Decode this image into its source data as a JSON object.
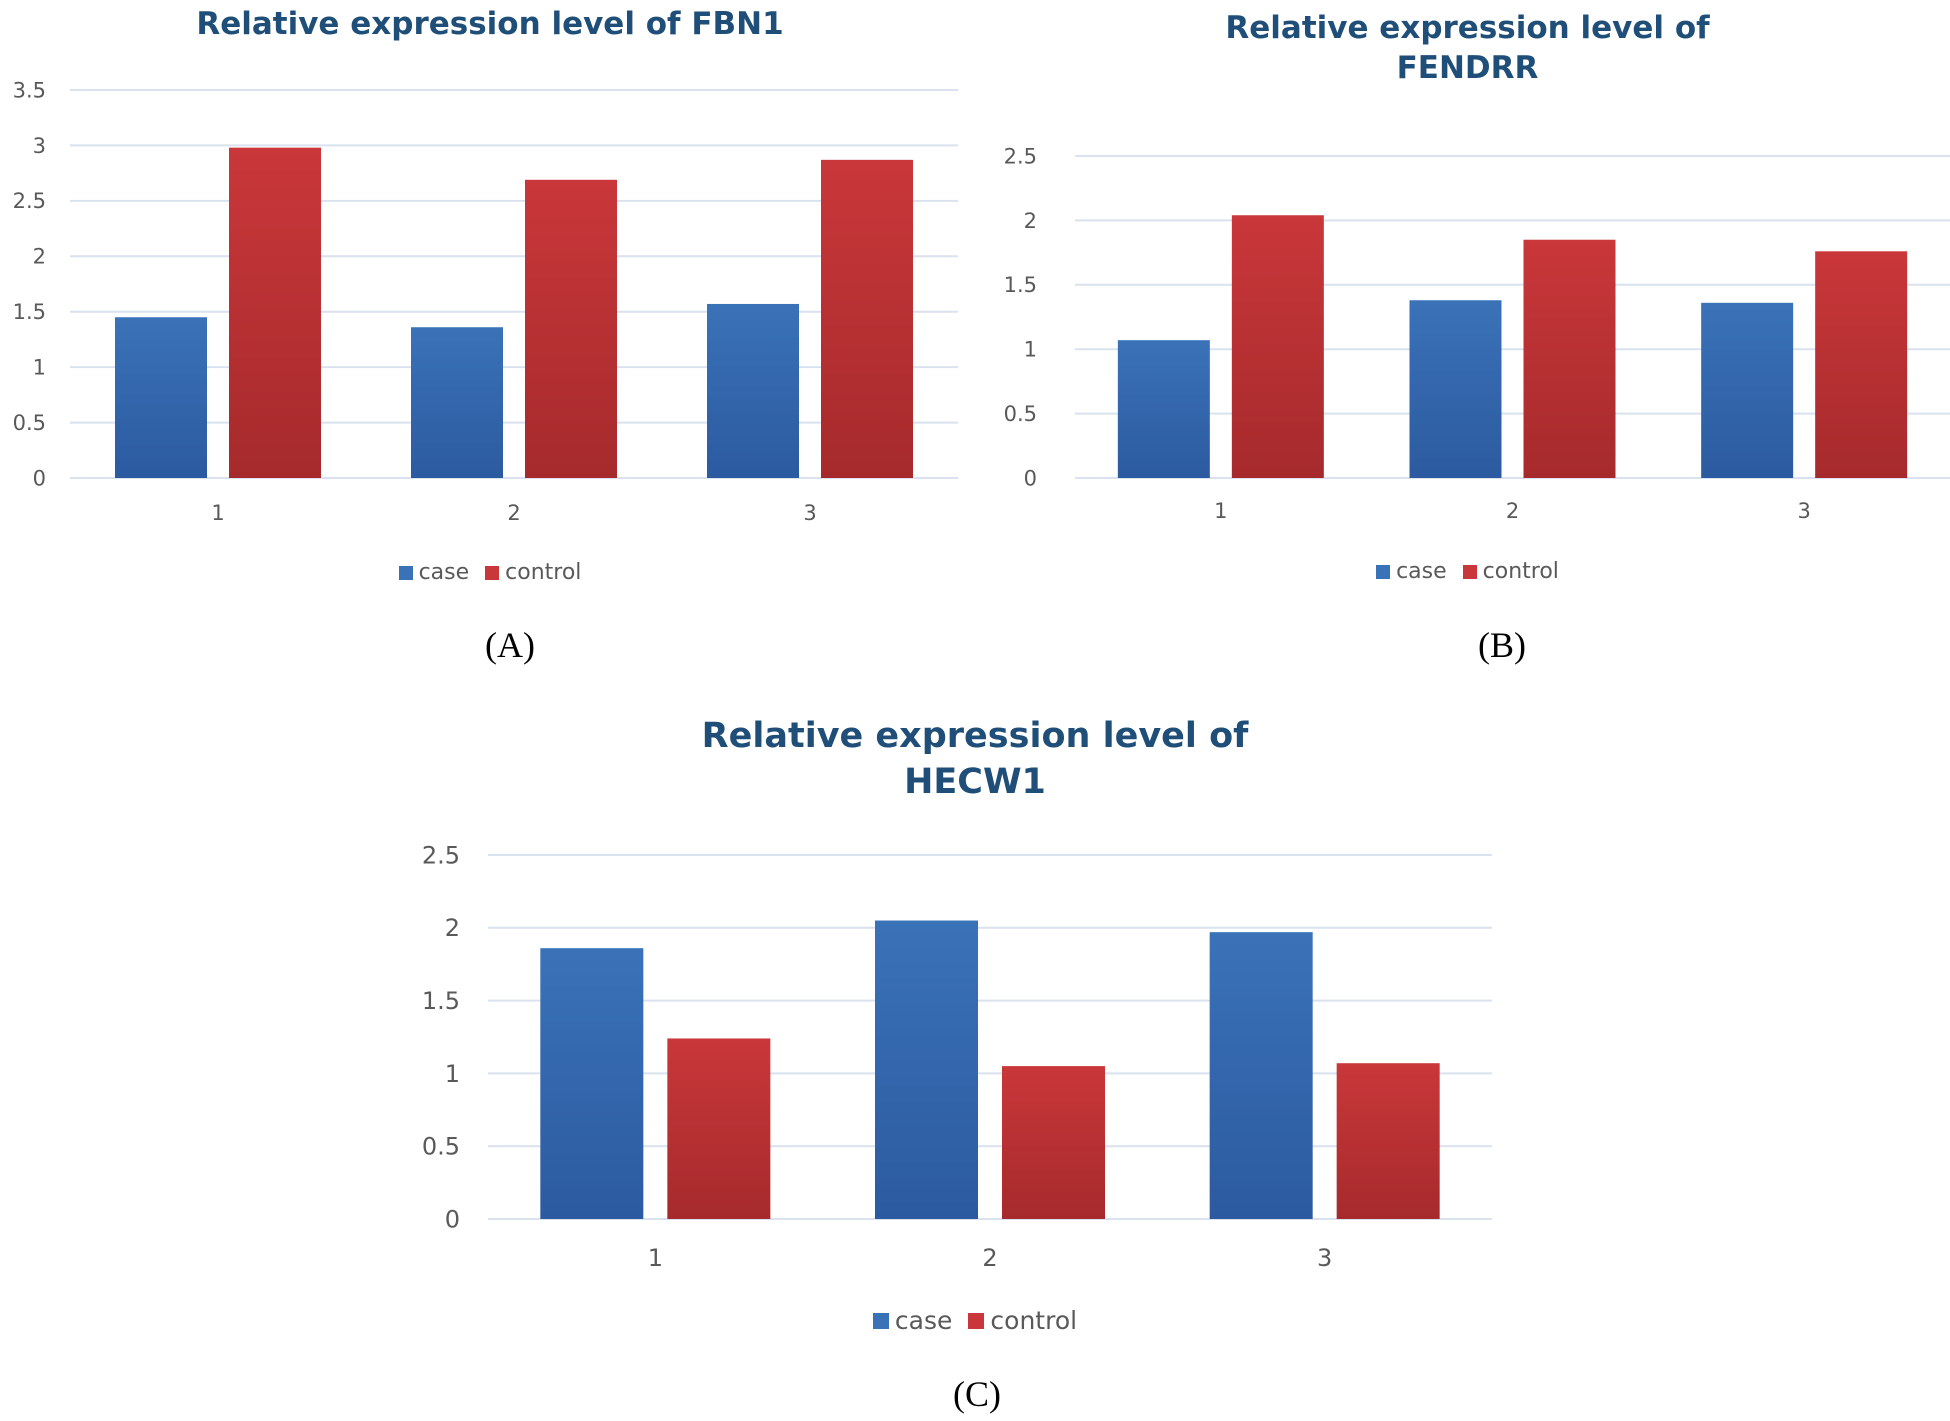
{
  "colors": {
    "case": "#3a72b8",
    "case_dark": "#2c5aa0",
    "control": "#c9373a",
    "control_dark": "#a62a2c",
    "grid": "#d9e2ee",
    "title": "#1f4e79"
  },
  "captions": {
    "a": "(A)",
    "b": "(B)",
    "c": "(C)"
  },
  "chart_data": [
    {
      "type": "bar",
      "title": "Relative expression level of FBN1",
      "title_lines": [
        "Relative expression level of FBN1"
      ],
      "categories": [
        "1",
        "2",
        "3"
      ],
      "series": [
        {
          "name": "case",
          "values": [
            1.45,
            1.36,
            1.57
          ]
        },
        {
          "name": "control",
          "values": [
            2.98,
            2.69,
            2.87
          ]
        }
      ],
      "yticks": [
        "0",
        "0.5",
        "1",
        "1.5",
        "2",
        "2.5",
        "3",
        "3.5"
      ],
      "ylim": [
        0,
        3.5
      ],
      "xlabel": "",
      "ylabel": "",
      "grid": true,
      "legend": "bottom"
    },
    {
      "type": "bar",
      "title": "Relative expression level of FENDRR",
      "title_lines": [
        "Relative expression level of",
        "FENDRR"
      ],
      "categories": [
        "1",
        "2",
        "3"
      ],
      "series": [
        {
          "name": "case",
          "values": [
            1.07,
            1.38,
            1.36
          ]
        },
        {
          "name": "control",
          "values": [
            2.04,
            1.85,
            1.76
          ]
        }
      ],
      "yticks": [
        "0",
        "0.5",
        "1",
        "1.5",
        "2",
        "2.5"
      ],
      "ylim": [
        0,
        2.5
      ],
      "xlabel": "",
      "ylabel": "",
      "grid": true,
      "legend": "bottom"
    },
    {
      "type": "bar",
      "title": "Relative expression level of HECW1",
      "title_lines": [
        "Relative expression level of",
        "HECW1"
      ],
      "categories": [
        "1",
        "2",
        "3"
      ],
      "series": [
        {
          "name": "case",
          "values": [
            1.86,
            2.05,
            1.97
          ]
        },
        {
          "name": "control",
          "values": [
            1.24,
            1.05,
            1.07
          ]
        }
      ],
      "yticks": [
        "0",
        "0.5",
        "1",
        "1.5",
        "2",
        "2.5"
      ],
      "ylim": [
        0,
        2.5
      ],
      "xlabel": "",
      "ylabel": "",
      "grid": true,
      "legend": "bottom"
    }
  ]
}
